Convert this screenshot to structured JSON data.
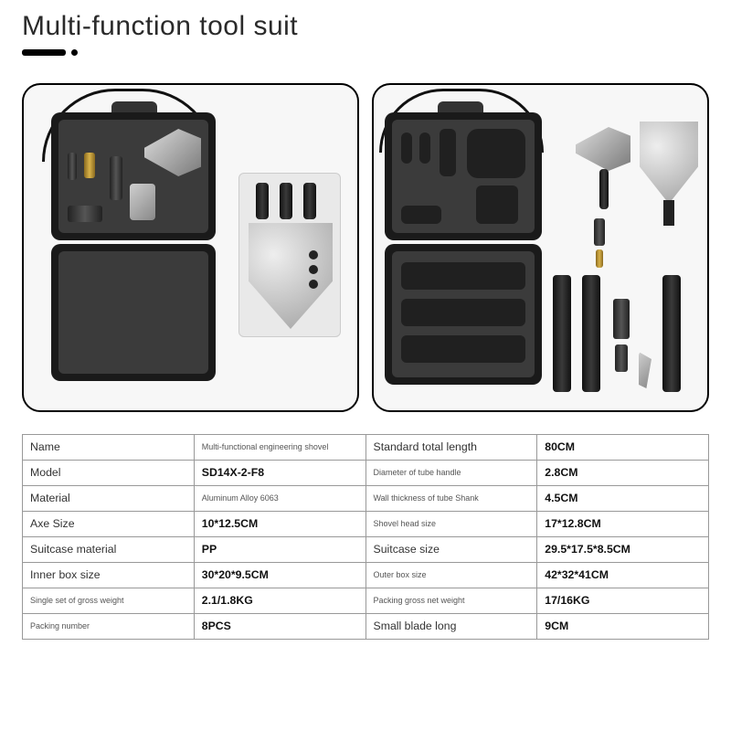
{
  "title": "Multi-function tool suit",
  "colors": {
    "page_bg": "#ffffff",
    "panel_border": "#000000",
    "panel_bg": "#f7f7f7",
    "case_body": "#1a1a1a",
    "foam": "#3b3b3b",
    "slot": "#202020",
    "metal_light": "#dcdcdc",
    "metal_dark": "#7a7a7a",
    "brass_light": "#d9b24a",
    "text": "#333333",
    "table_border": "#999999"
  },
  "panels": {
    "left": {
      "desc": "Open tool case with foam inserts holding axe head, flashlight, connectors; next to it a shovel head card"
    },
    "right": {
      "desc": "Open tool case showing empty foam cutouts; tools laid out beside it: axe, shovel head, connector, brass tip, three handle tubes, knife insert"
    }
  },
  "spec_table": {
    "columns": [
      "label_a",
      "value_a",
      "label_b",
      "value_b"
    ],
    "rows": [
      {
        "a_label": "Name",
        "a_value": "Multi-functional engineering shovel",
        "a_value_small": true,
        "b_label": "Standard total length",
        "b_value": "80CM"
      },
      {
        "a_label": "Model",
        "a_value": "SD14X-2-F8",
        "b_label": "Diameter of tube handle",
        "b_label_small": true,
        "b_value": "2.8CM"
      },
      {
        "a_label": "Material",
        "a_value": "Aluminum Alloy 6063",
        "a_value_small": true,
        "b_label": "Wall thickness of tube Shank",
        "b_label_small": true,
        "b_value": "4.5CM"
      },
      {
        "a_label": "Axe Size",
        "a_value": "10*12.5CM",
        "b_label": "Shovel head size",
        "b_label_small": true,
        "b_value": "17*12.8CM"
      },
      {
        "a_label": "Suitcase material",
        "a_value": "PP",
        "b_label": "Suitcase size",
        "b_value": "29.5*17.5*8.5CM"
      },
      {
        "a_label": "Inner box size",
        "a_value": "30*20*9.5CM",
        "b_label": "Outer box size",
        "b_label_small": true,
        "b_value": "42*32*41CM"
      },
      {
        "a_label": "Single set of gross weight",
        "a_label_small": true,
        "a_value": "2.1/1.8KG",
        "b_label": "Packing gross net weight",
        "b_label_small": true,
        "b_value": "17/16KG"
      },
      {
        "a_label": "Packing number",
        "a_label_small": true,
        "a_value": "8PCS",
        "b_label": "Small blade long",
        "b_value": "9CM"
      }
    ]
  }
}
